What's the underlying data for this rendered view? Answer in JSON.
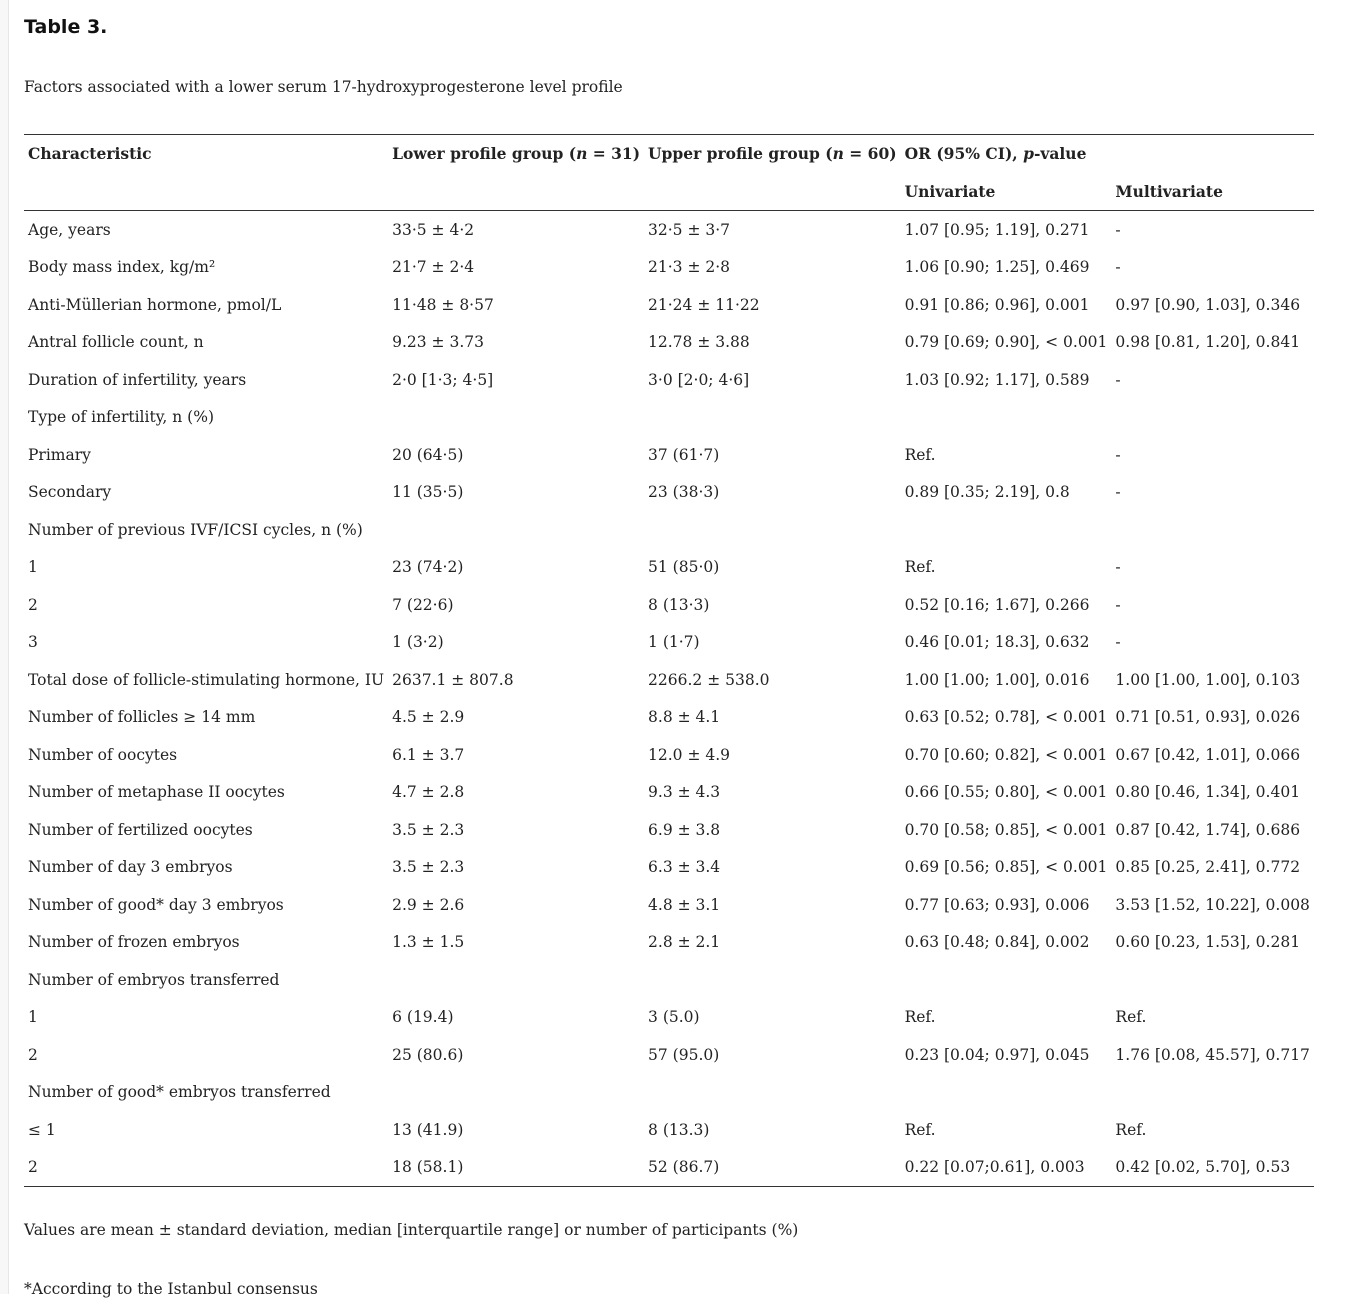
{
  "title": "Table 3.",
  "caption": "Factors associated with a lower serum 17-hydroxyprogesterone level profile",
  "header": {
    "characteristic": "Characteristic",
    "lower_prefix": "Lower profile group (",
    "lower_n": "n",
    "lower_suffix": " = 31)",
    "upper_prefix": "Upper profile group (",
    "upper_n": "n",
    "upper_suffix": " = 60)",
    "or_label": "OR (95% CI), ",
    "or_p": "p",
    "or_suffix": "-value",
    "univariate": "Univariate",
    "multivariate": "Multivariate"
  },
  "rows": [
    [
      "Age, years",
      "33·5 ± 4·2",
      "32·5 ± 3·7",
      "1.07 [0.95; 1.19], 0.271",
      "-"
    ],
    [
      "Body mass index, kg/m²",
      "21·7 ± 2·4",
      "21·3 ± 2·8",
      "1.06 [0.90; 1.25], 0.469",
      "-"
    ],
    [
      "Anti-Müllerian hormone, pmol/L",
      "11·48 ± 8·57",
      "21·24 ± 11·22",
      "0.91 [0.86; 0.96], 0.001",
      "0.97 [0.90, 1.03], 0.346"
    ],
    [
      "Antral follicle count, n",
      "9.23 ± 3.73",
      "12.78 ± 3.88",
      "0.79 [0.69; 0.90], < 0.001",
      "0.98 [0.81, 1.20], 0.841"
    ],
    [
      "Duration of infertility, years",
      "2·0 [1·3; 4·5]",
      "3·0 [2·0; 4·6]",
      "1.03 [0.92; 1.17], 0.589",
      "-"
    ],
    [
      "Type of infertility, n (%)",
      "",
      "",
      "",
      ""
    ],
    [
      "Primary",
      "20 (64·5)",
      "37 (61·7)",
      "Ref.",
      "-"
    ],
    [
      "Secondary",
      "11 (35·5)",
      "23 (38·3)",
      "0.89 [0.35; 2.19], 0.8",
      "-"
    ],
    [
      "Number of previous IVF/ICSI cycles, n (%)",
      "",
      "",
      "",
      ""
    ],
    [
      "1",
      "23 (74·2)",
      "51 (85·0)",
      "Ref.",
      "-"
    ],
    [
      "2",
      "7 (22·6)",
      "8 (13·3)",
      "0.52 [0.16; 1.67], 0.266",
      "-"
    ],
    [
      "3",
      "1 (3·2)",
      "1 (1·7)",
      "0.46 [0.01; 18.3], 0.632",
      "-"
    ],
    [
      "Total dose of follicle-stimulating hormone, IU",
      "2637.1 ± 807.8",
      "2266.2 ± 538.0",
      "1.00 [1.00; 1.00], 0.016",
      "1.00 [1.00, 1.00], 0.103"
    ],
    [
      "Number of follicles ≥ 14 mm",
      "4.5 ± 2.9",
      "8.8 ± 4.1",
      "0.63 [0.52; 0.78], < 0.001",
      "0.71 [0.51, 0.93], 0.026"
    ],
    [
      "Number of oocytes",
      "6.1 ± 3.7",
      "12.0 ± 4.9",
      "0.70 [0.60; 0.82], < 0.001",
      "0.67 [0.42, 1.01], 0.066"
    ],
    [
      "Number of metaphase II oocytes",
      "4.7 ± 2.8",
      "9.3 ± 4.3",
      "0.66 [0.55; 0.80], < 0.001",
      "0.80 [0.46, 1.34], 0.401"
    ],
    [
      "Number of fertilized oocytes",
      "3.5 ± 2.3",
      "6.9 ± 3.8",
      "0.70 [0.58; 0.85], < 0.001",
      "0.87 [0.42, 1.74], 0.686"
    ],
    [
      "Number of day 3 embryos",
      "3.5 ± 2.3",
      "6.3 ± 3.4",
      "0.69 [0.56; 0.85], < 0.001",
      "0.85 [0.25, 2.41], 0.772"
    ],
    [
      "Number of good* day 3 embryos",
      "2.9 ± 2.6",
      "4.8 ± 3.1",
      "0.77 [0.63; 0.93], 0.006",
      "3.53 [1.52, 10.22], 0.008"
    ],
    [
      "Number of frozen embryos",
      "1.3 ± 1.5",
      "2.8 ± 2.1",
      "0.63 [0.48; 0.84], 0.002",
      "0.60 [0.23, 1.53], 0.281"
    ],
    [
      "Number of embryos transferred",
      "",
      "",
      "",
      ""
    ],
    [
      "1",
      "6 (19.4)",
      "3 (5.0)",
      "Ref.",
      "Ref."
    ],
    [
      "2",
      "25 (80.6)",
      "57 (95.0)",
      "0.23 [0.04; 0.97], 0.045",
      "1.76 [0.08, 45.57], 0.717"
    ],
    [
      "Number of good* embryos transferred",
      "",
      "",
      "",
      ""
    ],
    [
      "≤ 1",
      "13 (41.9)",
      "8 (13.3)",
      "Ref.",
      "Ref."
    ],
    [
      "2",
      "18 (58.1)",
      "52 (86.7)",
      "0.22 [0.07;0.61], 0.003",
      "0.42 [0.02, 5.70], 0.53"
    ]
  ],
  "footnotes": [
    "Values are mean ± standard deviation, median [interquartile range] or number of participants (%)",
    "*According to the Istanbul consensus"
  ]
}
